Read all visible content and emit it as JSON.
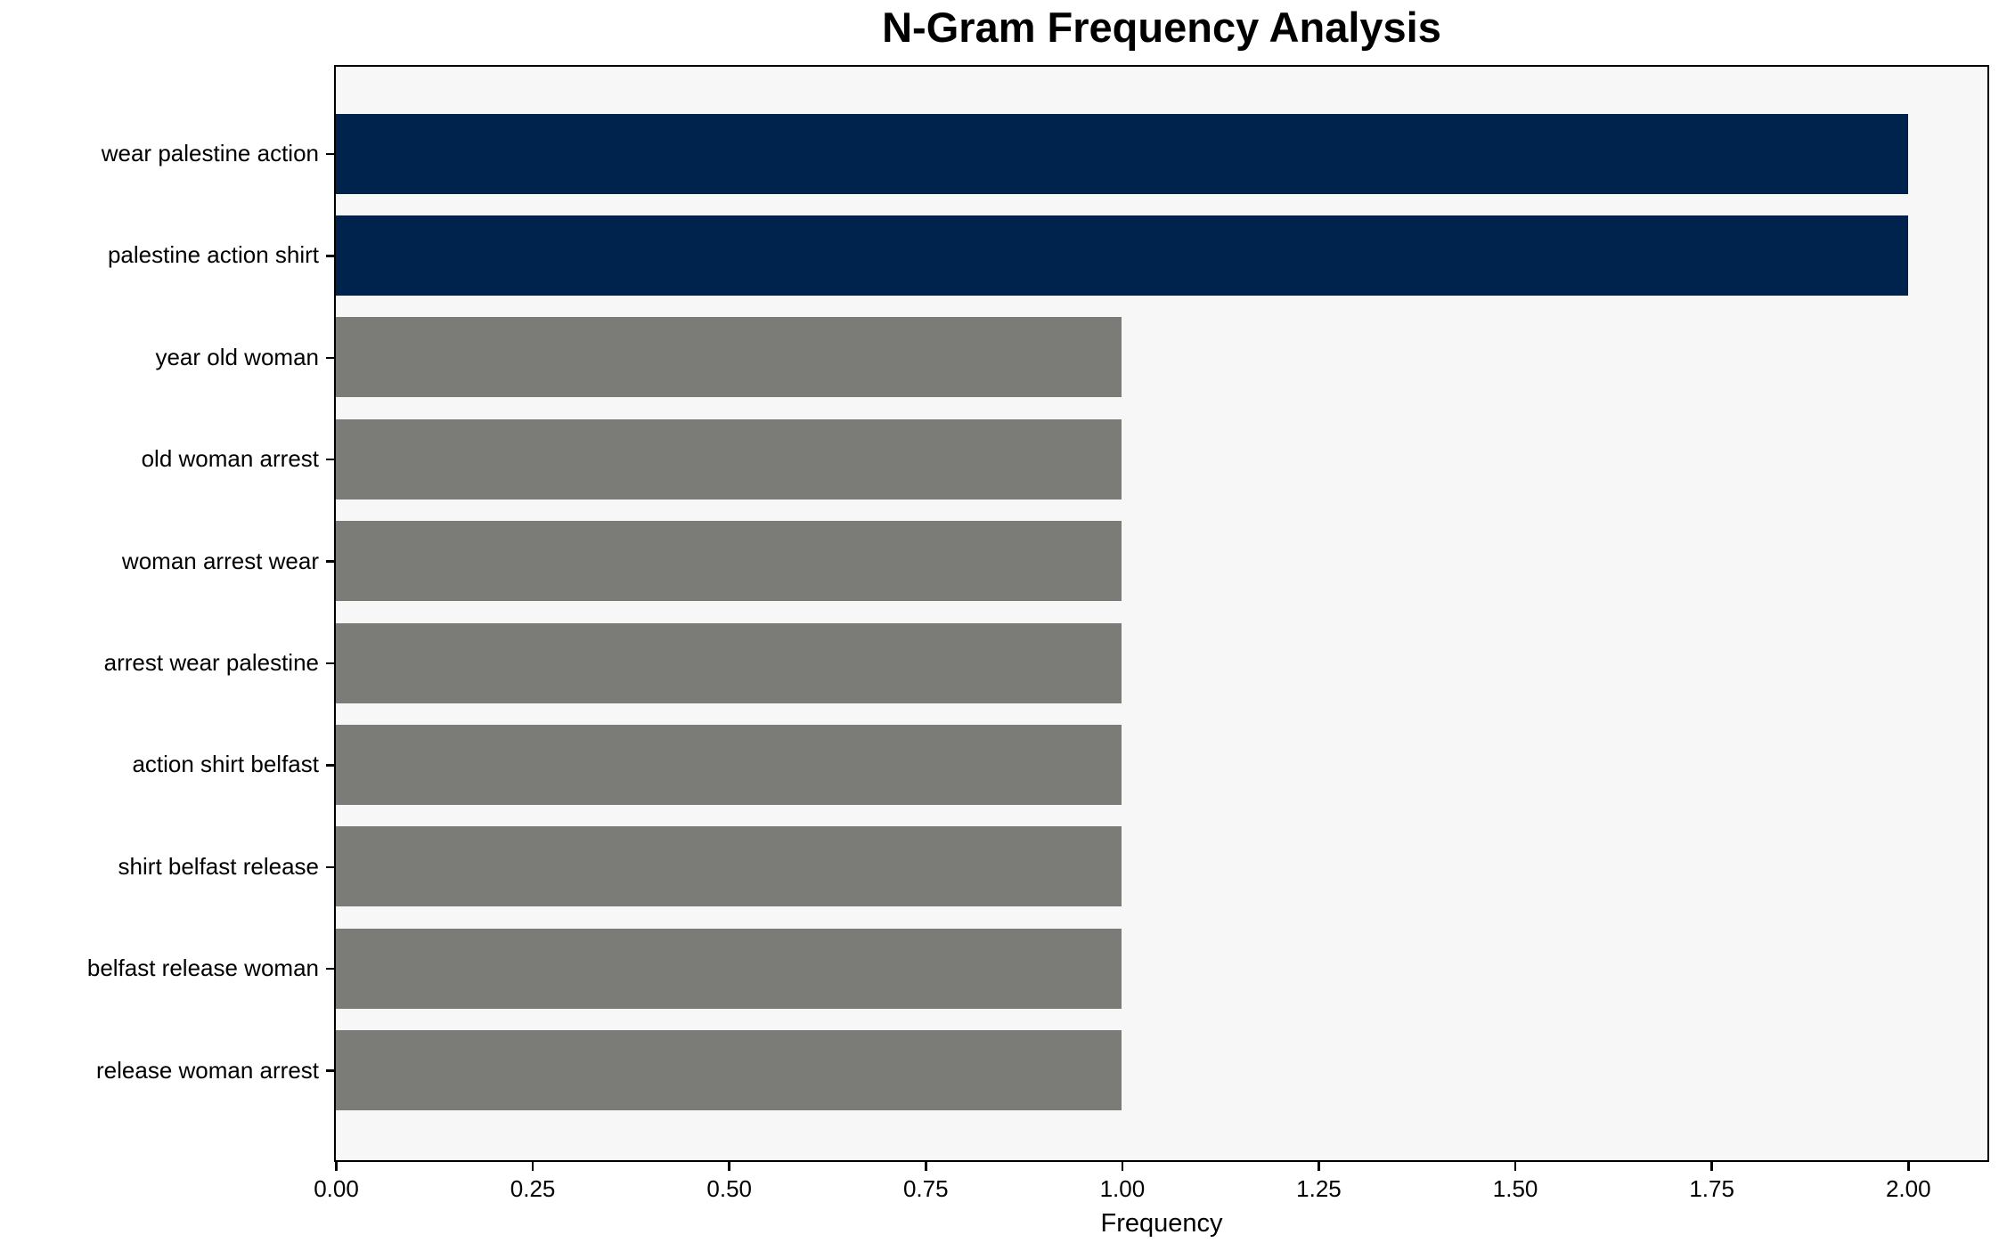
{
  "chart_data": {
    "type": "bar",
    "orientation": "horizontal",
    "title": "N-Gram Frequency Analysis",
    "xlabel": "Frequency",
    "categories": [
      "wear palestine action",
      "palestine action shirt",
      "year old woman",
      "old woman arrest",
      "woman arrest wear",
      "arrest wear palestine",
      "action shirt belfast",
      "shirt belfast release",
      "belfast release woman",
      "release woman arrest"
    ],
    "values": [
      2,
      2,
      1,
      1,
      1,
      1,
      1,
      1,
      1,
      1
    ],
    "bar_colors": [
      "#00234E",
      "#00234E",
      "#7B7B78",
      "#7B7B78",
      "#7B7B78",
      "#7B7B78",
      "#7B7B78",
      "#7B7B78",
      "#7B7B78",
      "#7B7B78"
    ],
    "highlight_color": "#00234E",
    "default_color": "#7B7B78",
    "xlim": [
      0,
      2.1
    ],
    "xticks": [
      0,
      0.25,
      0.5,
      0.75,
      1.0,
      1.25,
      1.5,
      1.75,
      2.0
    ],
    "xtick_labels": [
      "0.00",
      "0.25",
      "0.50",
      "0.75",
      "1.00",
      "1.25",
      "1.50",
      "1.75",
      "2.00"
    ],
    "grid": false,
    "legend_position": "none",
    "plot_background": "#F8F7F7",
    "figure_background": "#FFFFFF",
    "spine_color": "#000000",
    "text_color": "#000000"
  }
}
